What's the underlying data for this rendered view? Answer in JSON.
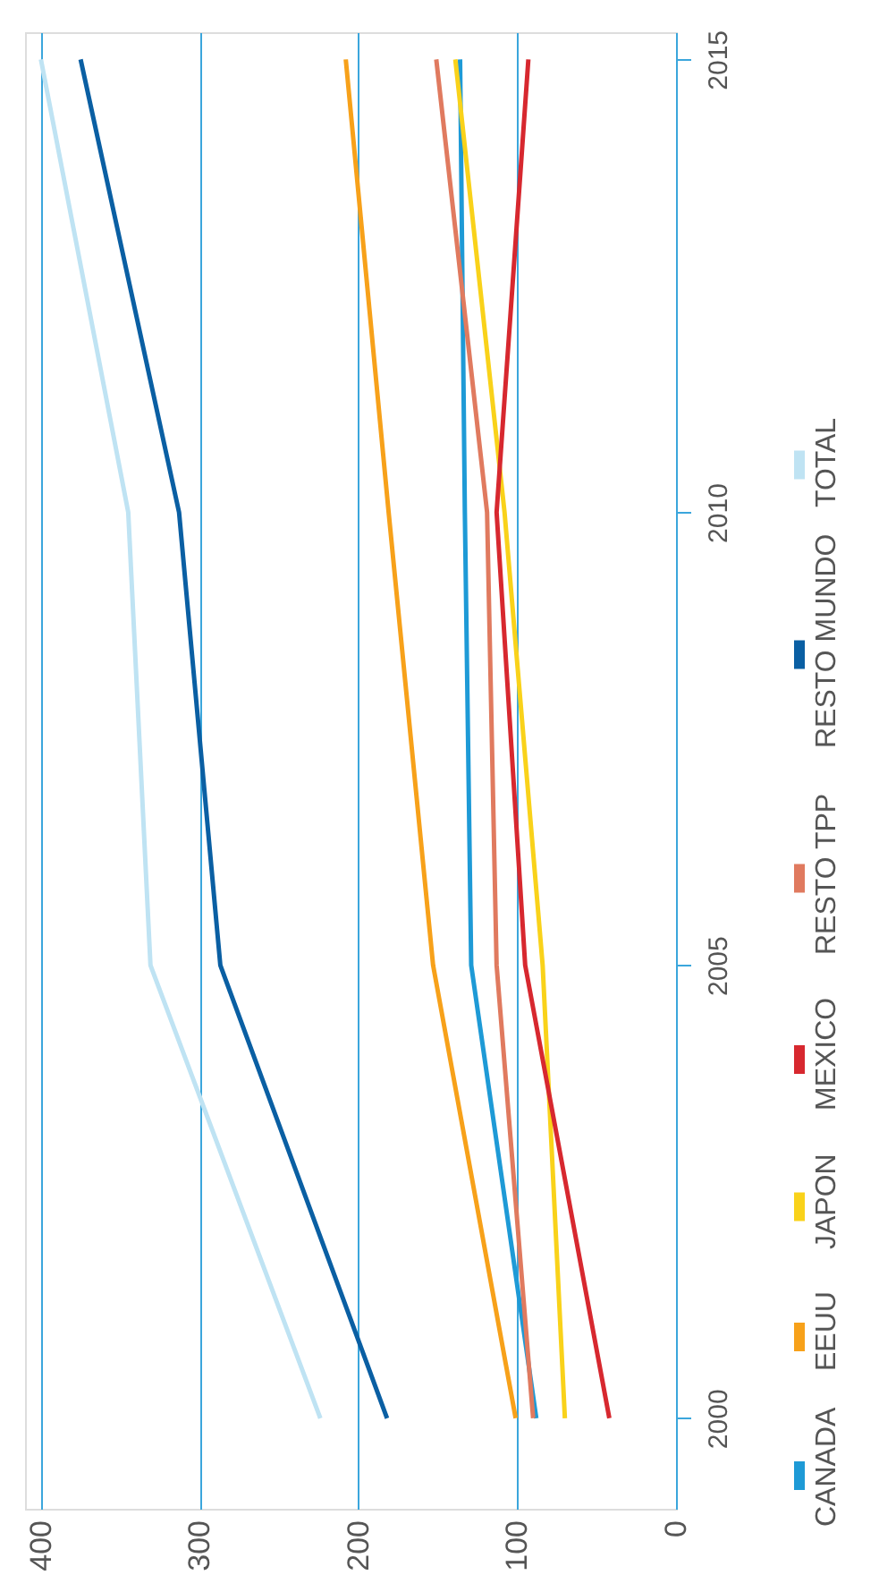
{
  "chart_data": {
    "type": "line",
    "series": [
      {
        "name": "CANADA",
        "color": "#1e9ad6",
        "x": [
          88,
          129,
          133,
          136
        ],
        "values": [
          2000,
          2005,
          2010,
          2015
        ]
      },
      {
        "name": "EEUU",
        "color": "#f7a11a",
        "x": [
          101,
          153,
          181,
          208
        ],
        "values": [
          2000,
          2005,
          2010,
          2015
        ]
      },
      {
        "name": "JAPON",
        "color": "#f9d21a",
        "x": [
          70,
          84,
          108,
          139
        ],
        "values": [
          2000,
          2005,
          2010,
          2015
        ]
      },
      {
        "name": "MEXICO",
        "color": "#d7282f",
        "x": [
          42,
          95,
          113,
          93
        ],
        "values": [
          2000,
          2005,
          2010,
          2015
        ]
      },
      {
        "name": "RESTO TPP",
        "color": "#e07a5f",
        "x": [
          90,
          113,
          119,
          151
        ],
        "values": [
          2000,
          2005,
          2010,
          2015
        ]
      },
      {
        "name": "RESTO MUNDO",
        "color": "#0a5fa3",
        "x": [
          182,
          287,
          313,
          375
        ],
        "values": [
          2000,
          2005,
          2010,
          2015
        ]
      },
      {
        "name": "TOTAL",
        "color": "#bfe3f3",
        "x": [
          224,
          331,
          345,
          400
        ],
        "values": [
          2000,
          2005,
          2010,
          2015
        ]
      }
    ],
    "xlim": [
      410,
      0
    ],
    "xticks": [
      0,
      100,
      200,
      300,
      400
    ],
    "ylim": [
      1999,
      2015.3
    ],
    "yticks": [
      2000,
      2005,
      2010,
      2015
    ],
    "grid": "x",
    "legend": "right",
    "marker": "none",
    "line_style": "solid"
  }
}
